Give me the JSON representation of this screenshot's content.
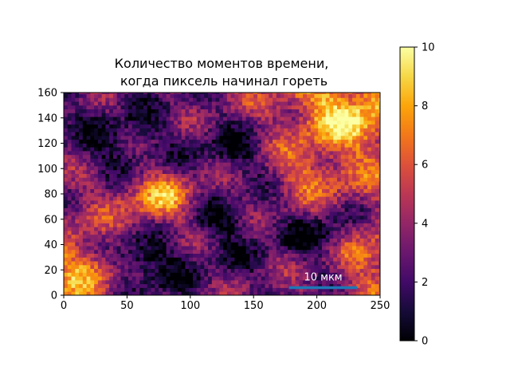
{
  "chart_data": [
    {
      "type": "heatmap",
      "title_lines": [
        "Количество моментов времени,",
        "когда пиксель начинал гореть"
      ],
      "xlabel": "",
      "ylabel": "",
      "xlim": [
        0,
        250
      ],
      "ylim": [
        0,
        160
      ],
      "x_ticks": [
        0,
        50,
        100,
        150,
        200,
        250
      ],
      "y_ticks": [
        0,
        20,
        40,
        60,
        80,
        100,
        120,
        140,
        160
      ],
      "x_tick_labels": [
        "0",
        "50",
        "100",
        "150",
        "200",
        "250"
      ],
      "y_tick_labels": [
        "0",
        "20",
        "40",
        "60",
        "80",
        "100",
        "120",
        "140",
        "160"
      ],
      "grid": false,
      "colormap": "inferno",
      "value_range": [
        0,
        10
      ],
      "colorbar": {
        "ticks": [
          0,
          2,
          4,
          6,
          8,
          10
        ],
        "tick_labels": [
          "0",
          "2",
          "4",
          "6",
          "8",
          "10"
        ]
      },
      "scale_bar": {
        "label": "10 мкм",
        "x_start": 178,
        "x_end": 232,
        "y": 6,
        "color": "#1f77b4"
      },
      "approximate_regions": [
        {
          "description": "dark blob",
          "x": 125,
          "y": 55,
          "value": 1
        },
        {
          "description": "dark area",
          "x": 130,
          "y": 110,
          "value": 1
        },
        {
          "description": "dark area",
          "x": 45,
          "y": 115,
          "value": 1
        },
        {
          "description": "dark area",
          "x": 60,
          "y": 25,
          "value": 0
        },
        {
          "description": "dark area",
          "x": 200,
          "y": 45,
          "value": 1
        },
        {
          "description": "bright area",
          "x": 220,
          "y": 140,
          "value": 8
        },
        {
          "description": "bright area",
          "x": 75,
          "y": 75,
          "value": 7
        },
        {
          "description": "bright area",
          "x": 195,
          "y": 95,
          "value": 6
        },
        {
          "description": "bright area",
          "x": 15,
          "y": 20,
          "value": 7
        },
        {
          "description": "bright area",
          "x": 240,
          "y": 30,
          "value": 6
        }
      ]
    }
  ]
}
